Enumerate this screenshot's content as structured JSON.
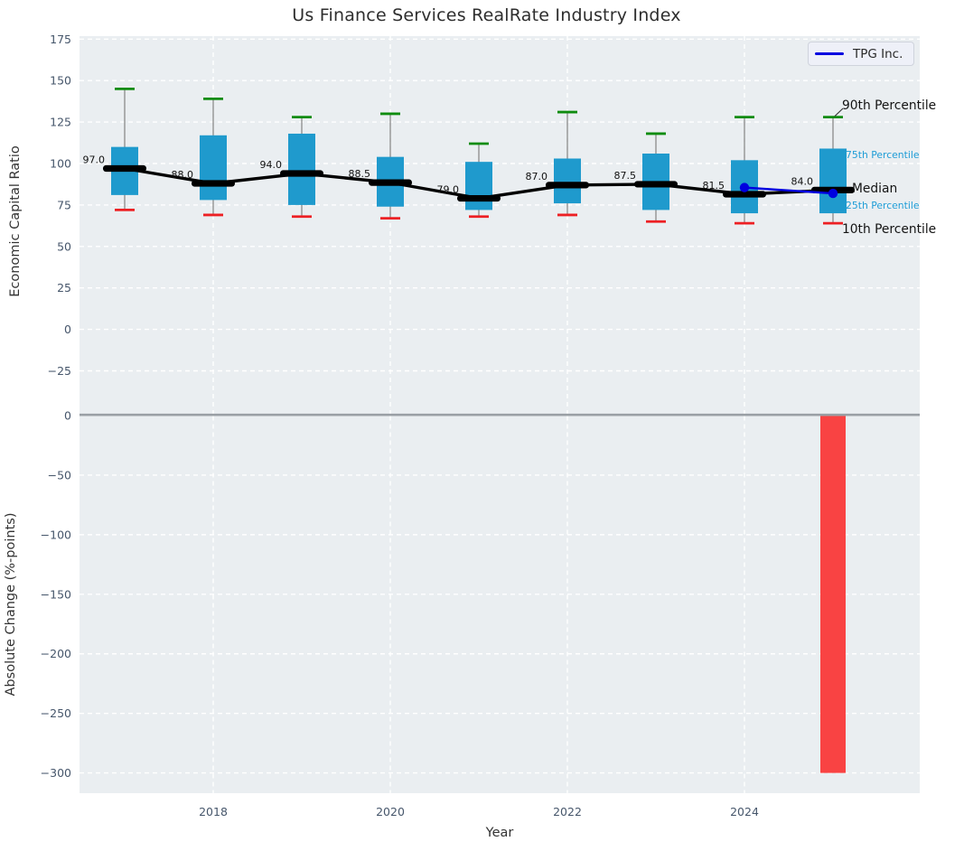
{
  "colors": {
    "plot_bg": "#eaeef1",
    "grid": "#ffffff",
    "box_fill": "#1f9acd",
    "whisker": "#8a8a8a",
    "cap_top_green": "#0e8c0e",
    "cap_bottom_red": "#ed2024",
    "median_black": "#000000",
    "tpg_blue": "#0000e0",
    "bar_red": "#f94343",
    "tick_text": "#46566b",
    "axis_label_text": "#333333",
    "zero_line": "#9aa0a5",
    "annotation_blue": "#1e9cd6"
  },
  "chart_data": {
    "type": "boxplot+bar",
    "title": "Us Finance Services RealRate Industry Index",
    "xlabel": "Year",
    "xticks": [
      2018,
      2020,
      2022,
      2024
    ],
    "legend": {
      "label": "TPG Inc."
    },
    "annotations": {
      "p90": "90th Percentile",
      "p75": "75th Percentile",
      "median": "Median",
      "p25": "25th Percentile",
      "p10": "10th Percentile"
    },
    "top": {
      "ylabel": "Economic Capital Ratio",
      "yticks": [
        175,
        150,
        125,
        100,
        75,
        50,
        25,
        0,
        -25
      ],
      "ylim": [
        -51,
        177
      ],
      "grid": "white dashed",
      "legend_position": "upper right",
      "boxes": [
        {
          "year": 2017,
          "p10": 72,
          "p25": 81,
          "median": 97.0,
          "p75": 110,
          "p90": 145,
          "median_label": "97.0"
        },
        {
          "year": 2018,
          "p10": 69,
          "p25": 78,
          "median": 88.0,
          "p75": 117,
          "p90": 139,
          "median_label": "88.0"
        },
        {
          "year": 2019,
          "p10": 68,
          "p25": 75,
          "median": 94.0,
          "p75": 118,
          "p90": 128,
          "median_label": "94.0"
        },
        {
          "year": 2020,
          "p10": 67,
          "p25": 74,
          "median": 88.5,
          "p75": 104,
          "p90": 130,
          "median_label": "88.5"
        },
        {
          "year": 2021,
          "p10": 68,
          "p25": 72,
          "median": 79.0,
          "p75": 101,
          "p90": 112,
          "median_label": "79.0"
        },
        {
          "year": 2022,
          "p10": 69,
          "p25": 76,
          "median": 87.0,
          "p75": 103,
          "p90": 131,
          "median_label": "87.0"
        },
        {
          "year": 2023,
          "p10": 65,
          "p25": 72,
          "median": 87.5,
          "p75": 106,
          "p90": 118,
          "median_label": "87.5"
        },
        {
          "year": 2024,
          "p10": 64,
          "p25": 70,
          "median": 81.5,
          "p75": 102,
          "p90": 128,
          "median_label": "81.5"
        },
        {
          "year": 2025,
          "p10": 64,
          "p25": 70,
          "median": 84.0,
          "p75": 109,
          "p90": 128,
          "median_label": "84.0"
        }
      ],
      "series": [
        {
          "name": "TPG Inc.",
          "x": [
            2024,
            2025
          ],
          "y": [
            85.5,
            82.0
          ],
          "marker": "circle"
        }
      ]
    },
    "bottom": {
      "ylabel": "Absolute Change (%-points)",
      "yticks": [
        0,
        -50,
        -100,
        -150,
        -200,
        -250,
        -300
      ],
      "ylim": [
        -317,
        2
      ],
      "bars": [
        {
          "year": 2025,
          "value": -300
        }
      ]
    }
  }
}
